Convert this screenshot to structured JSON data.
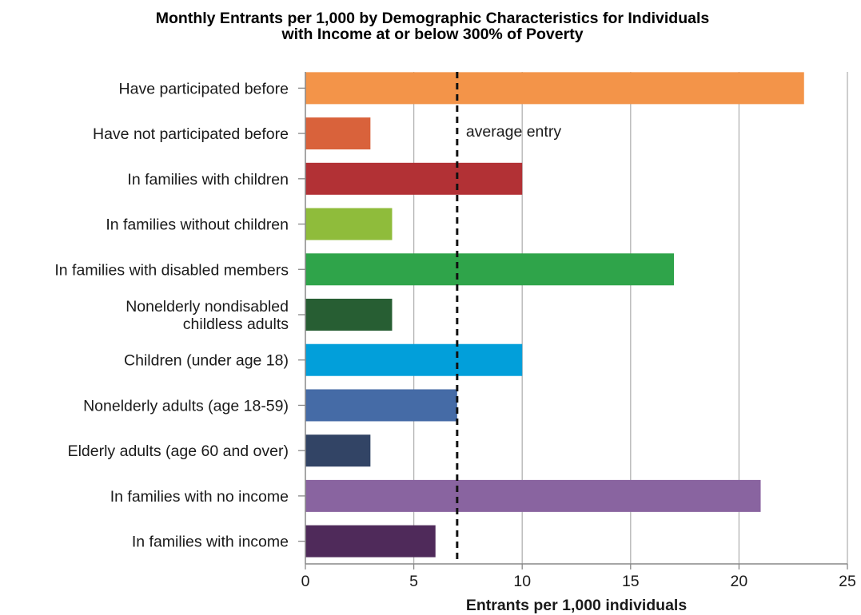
{
  "chart_data": {
    "type": "bar",
    "orientation": "horizontal",
    "title": "Monthly Entrants per 1,000 by Demographic Characteristics for Individuals with Income at or below 300% of Poverty",
    "title_lines": [
      "Monthly Entrants per 1,000 by Demographic Characteristics for Individuals",
      "with Income at or below 300% of Poverty"
    ],
    "xlabel": "Entrants per 1,000 individuals",
    "ylabel": "",
    "xlim": [
      0,
      25
    ],
    "xticks": [
      0,
      5,
      10,
      15,
      20,
      25
    ],
    "grid": true,
    "categories": [
      [
        "Have participated before"
      ],
      [
        "Have not participated before"
      ],
      [
        "In families with children"
      ],
      [
        "In families without children"
      ],
      [
        "In families with disabled members"
      ],
      [
        "Nonelderly nondisabled",
        "childless adults"
      ],
      [
        "Children (under age 18)"
      ],
      [
        "Nonelderly adults (age 18-59)"
      ],
      [
        "Elderly adults (age 60 and over)"
      ],
      [
        "In families with no income"
      ],
      [
        "In families with income"
      ]
    ],
    "values": [
      23,
      3,
      10,
      4,
      17,
      4,
      10,
      7,
      3,
      21,
      6
    ],
    "colors": [
      "#f39449",
      "#d9623b",
      "#b23135",
      "#8fbc3b",
      "#2fa44a",
      "#275e33",
      "#029fda",
      "#456ba6",
      "#324465",
      "#8964a0",
      "#4f2a5a"
    ],
    "reference_line": {
      "value": 7,
      "label": "average entry",
      "style": "dashed"
    }
  }
}
